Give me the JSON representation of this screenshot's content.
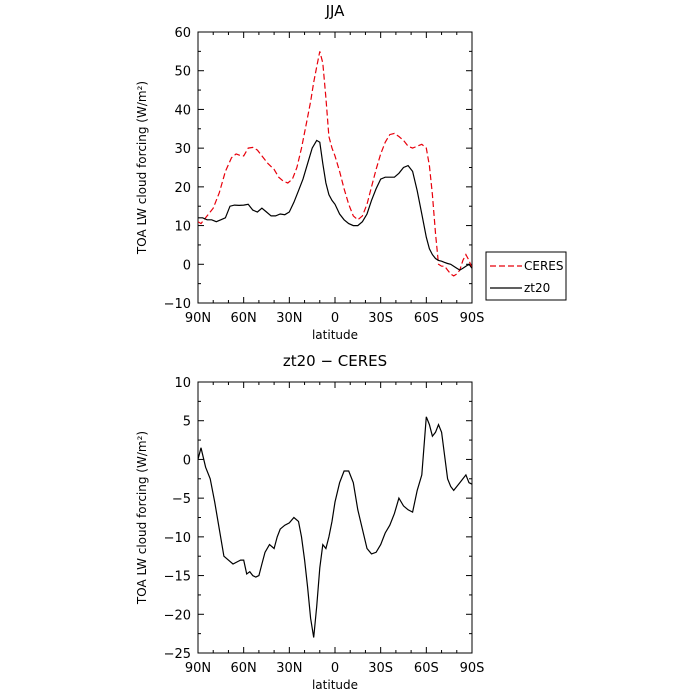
{
  "chart_data": [
    {
      "type": "line",
      "title": "JJA",
      "xlabel": "latitude",
      "ylabel": "TOA LW cloud forcing (W/m²)",
      "xlim": [
        90,
        -90
      ],
      "ylim": [
        -10,
        60
      ],
      "xticks": [
        90,
        60,
        30,
        0,
        -30,
        -60,
        -90
      ],
      "xtick_labels": [
        "90N",
        "60N",
        "30N",
        "0",
        "30S",
        "60S",
        "90S"
      ],
      "yticks": [
        -10,
        0,
        10,
        20,
        30,
        40,
        50,
        60
      ],
      "ytick_labels": [
        "−10",
        "0",
        "10",
        "20",
        "30",
        "40",
        "50",
        "60"
      ],
      "legend": {
        "position": "outside-right",
        "entries": [
          "CERES",
          "zt20"
        ]
      },
      "grid": false,
      "series": [
        {
          "name": "CERES",
          "color": "#e8000b",
          "dash": "dashed",
          "x": [
            90,
            88,
            85,
            80,
            76,
            72,
            68,
            65,
            63,
            60,
            57,
            54,
            51,
            48,
            44,
            40,
            37,
            34,
            31,
            28,
            25,
            22,
            19,
            16,
            14,
            12,
            10,
            8,
            6,
            4,
            2,
            0,
            -3,
            -6,
            -9,
            -12,
            -15,
            -18,
            -21,
            -24,
            -27,
            -30,
            -33,
            -36,
            -39,
            -42,
            -45,
            -48,
            -51,
            -54,
            -57,
            -60,
            -62,
            -64,
            -66,
            -68,
            -70,
            -72,
            -74,
            -76,
            -78,
            -80,
            -82,
            -84,
            -86,
            -88,
            -90
          ],
          "y": [
            11,
            10.5,
            12,
            14.5,
            18.5,
            24,
            27.5,
            28.5,
            28.2,
            28,
            30,
            30.2,
            29.5,
            28,
            26,
            24.5,
            22.5,
            21.5,
            21,
            22,
            25,
            30,
            36,
            42,
            47,
            51,
            55,
            52,
            43,
            33,
            30,
            28,
            24,
            19.5,
            15.5,
            12.5,
            11.5,
            12.5,
            15.5,
            20,
            24.5,
            28.5,
            31.5,
            33.5,
            33.8,
            33,
            32,
            30.5,
            30,
            30.5,
            31,
            30,
            25.5,
            18,
            8,
            0,
            -0.5,
            -0.5,
            -1.5,
            -2.5,
            -3,
            -2.5,
            -1.5,
            1,
            2.5,
            1,
            -1
          ]
        },
        {
          "name": "zt20",
          "color": "#000000",
          "dash": "solid",
          "x": [
            90,
            87,
            84,
            81,
            78,
            75,
            72,
            69,
            66,
            63,
            60,
            57,
            54,
            51,
            48,
            45,
            42,
            39,
            36,
            33,
            30,
            27,
            24,
            21,
            18,
            15,
            12,
            10,
            8,
            6,
            4,
            2,
            0,
            -3,
            -6,
            -9,
            -12,
            -15,
            -18,
            -21,
            -24,
            -27,
            -30,
            -33,
            -36,
            -39,
            -42,
            -45,
            -48,
            -51,
            -54,
            -57,
            -60,
            -62,
            -64,
            -66,
            -68,
            -70,
            -72,
            -74,
            -76,
            -78,
            -80,
            -82,
            -84,
            -86,
            -88,
            -90
          ],
          "y": [
            12,
            12,
            11.5,
            11.5,
            11,
            11.5,
            12,
            15,
            15.3,
            15.2,
            15.3,
            15.5,
            14,
            13.5,
            14.5,
            13.5,
            12.5,
            12.5,
            13,
            12.8,
            13.5,
            16,
            19,
            22,
            26,
            30,
            32,
            31.5,
            26,
            21,
            18,
            16.5,
            15.5,
            13,
            11.5,
            10.5,
            10,
            10,
            11,
            13,
            16.5,
            19.5,
            22,
            22.5,
            22.5,
            22.5,
            23.5,
            25,
            25.5,
            24,
            19,
            13,
            7,
            4,
            2.5,
            1.5,
            1,
            0.8,
            0.5,
            0.2,
            0,
            -0.5,
            -1,
            -1.5,
            -1,
            -0.5,
            0,
            -1
          ]
        }
      ]
    },
    {
      "type": "line",
      "title": "zt20 − CERES",
      "xlabel": "latitude",
      "ylabel": "TOA LW cloud forcing (W/m²)",
      "xlim": [
        90,
        -90
      ],
      "ylim": [
        -25,
        10
      ],
      "xticks": [
        90,
        60,
        30,
        0,
        -30,
        -60,
        -90
      ],
      "xtick_labels": [
        "90N",
        "60N",
        "30N",
        "0",
        "30S",
        "60S",
        "90S"
      ],
      "yticks": [
        -25,
        -20,
        -15,
        -10,
        -5,
        0,
        5,
        10
      ],
      "ytick_labels": [
        "−25",
        "−20",
        "−15",
        "−10",
        "−5",
        "0",
        "5",
        "10"
      ],
      "grid": false,
      "series": [
        {
          "name": "zt20 − CERES",
          "color": "#000000",
          "dash": "solid",
          "x": [
            90,
            88,
            85,
            82,
            79,
            76,
            73,
            70,
            67,
            64,
            62,
            60,
            58,
            56,
            54,
            52,
            50,
            48,
            46,
            43,
            40,
            38,
            36,
            33,
            30,
            27,
            24,
            22,
            20,
            18,
            16,
            14,
            12,
            10,
            8,
            6,
            4,
            2,
            0,
            -3,
            -6,
            -9,
            -12,
            -15,
            -18,
            -21,
            -24,
            -27,
            -30,
            -33,
            -36,
            -39,
            -42,
            -45,
            -48,
            -51,
            -54,
            -57,
            -60,
            -62,
            -64,
            -66,
            -68,
            -70,
            -72,
            -74,
            -76,
            -78,
            -80,
            -82,
            -84,
            -86,
            -88,
            -90
          ],
          "y": [
            0,
            1.5,
            -1,
            -2.5,
            -5.5,
            -9,
            -12.5,
            -13,
            -13.5,
            -13.2,
            -13,
            -13,
            -14.8,
            -14.5,
            -15,
            -15.2,
            -15,
            -13.5,
            -12,
            -11,
            -11.5,
            -10,
            -9,
            -8.5,
            -8.2,
            -7.5,
            -8,
            -10,
            -13,
            -16.5,
            -20.5,
            -23,
            -19,
            -14,
            -11,
            -11.5,
            -10,
            -8,
            -5.5,
            -3,
            -1.5,
            -1.5,
            -3,
            -6.5,
            -9,
            -11.5,
            -12.2,
            -12,
            -11,
            -9.5,
            -8.5,
            -7,
            -5,
            -6,
            -6.5,
            -6.8,
            -4,
            -2,
            5.5,
            4.5,
            3,
            3.5,
            4.5,
            3.5,
            0.5,
            -2.5,
            -3.5,
            -4,
            -3.5,
            -3,
            -2.5,
            -2,
            -3,
            -3.2
          ]
        }
      ]
    }
  ]
}
